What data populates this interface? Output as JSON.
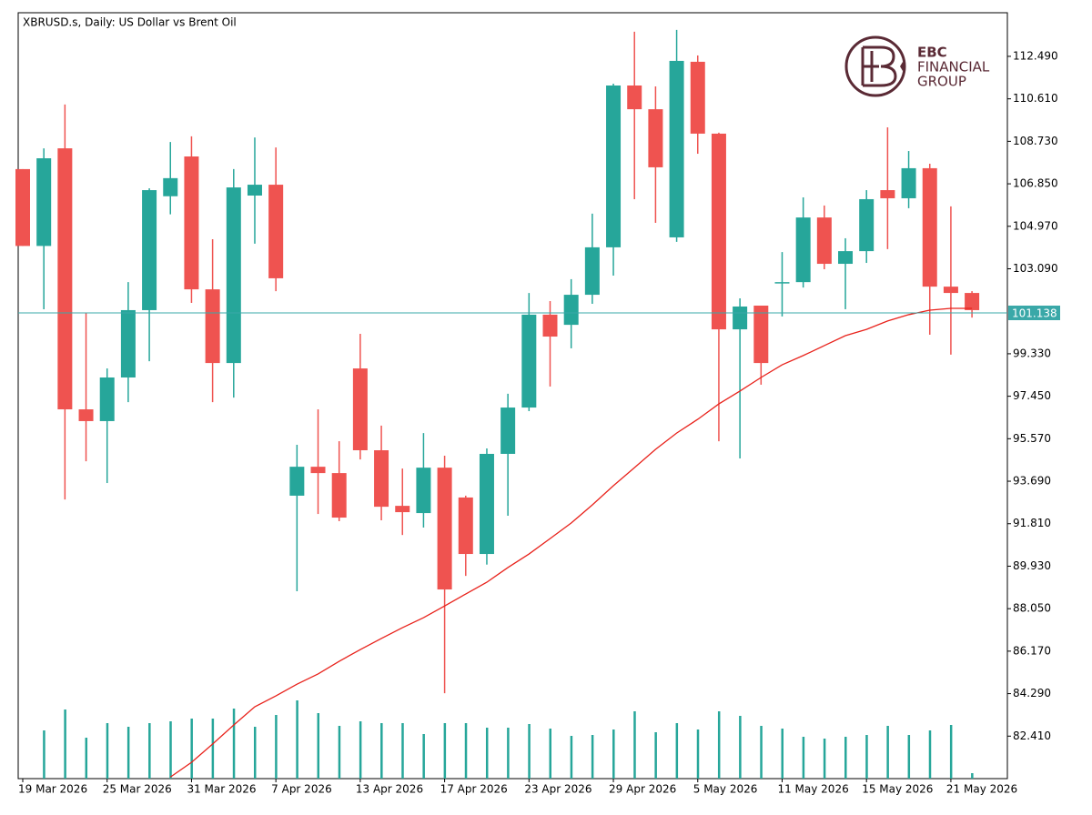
{
  "chart_data": {
    "type": "candlestick",
    "title": "XBRUSD.s, Daily:  US Dollar vs Brent Oil",
    "categories": [
      "19 Mar 2026",
      null,
      null,
      null,
      "25 Mar 2026",
      null,
      null,
      null,
      "31 Mar 2026",
      null,
      null,
      null,
      "7 Apr 2026",
      null,
      null,
      null,
      "13 Apr 2026",
      null,
      null,
      null,
      "17 Apr 2026",
      null,
      null,
      null,
      "23 Apr 2026",
      null,
      null,
      null,
      "29 Apr 2026",
      null,
      null,
      null,
      "5 May 2026",
      null,
      null,
      null,
      "11 May 2026",
      null,
      null,
      null,
      "15 May 2026",
      null,
      null,
      null,
      "21 May 2026",
      null
    ],
    "open": [
      107.5,
      104.1,
      108.42,
      96.87,
      96.35,
      98.28,
      101.26,
      106.3,
      108.06,
      102.18,
      98.92,
      106.33,
      106.81,
      93.05,
      94.33,
      94.05,
      98.68,
      95.06,
      92.6,
      92.28,
      94.29,
      92.97,
      90.47,
      94.9,
      96.95,
      101.06,
      100.61,
      101.94,
      104.04,
      111.2,
      110.15,
      104.48,
      112.25,
      109.07,
      100.41,
      101.46,
      102.46,
      102.5,
      105.36,
      103.31,
      103.87,
      106.57,
      106.21,
      107.54,
      102.3,
      102.02
    ],
    "high": [
      107.5,
      108.42,
      110.36,
      101.14,
      98.68,
      102.5,
      106.65,
      108.7,
      108.95,
      104.4,
      107.5,
      108.9,
      108.46,
      95.3,
      96.87,
      95.46,
      100.21,
      96.15,
      94.25,
      95.82,
      94.82,
      93.05,
      95.14,
      97.56,
      102.02,
      101.66,
      102.63,
      105.53,
      111.28,
      113.58,
      111.16,
      113.66,
      112.53,
      109.11,
      101.78,
      101.46,
      103.83,
      106.25,
      105.89,
      104.44,
      106.57,
      109.35,
      108.3,
      107.74,
      105.85,
      102.1
    ],
    "low": [
      104.1,
      101.3,
      92.88,
      94.57,
      93.61,
      97.19,
      99.0,
      105.5,
      101.58,
      97.19,
      97.39,
      104.2,
      102.1,
      88.82,
      92.24,
      91.92,
      94.65,
      91.96,
      91.31,
      91.64,
      84.31,
      89.5,
      90.0,
      92.16,
      96.79,
      97.88,
      99.57,
      101.54,
      102.79,
      106.17,
      105.12,
      104.28,
      108.18,
      95.46,
      94.7,
      97.96,
      100.98,
      102.26,
      103.07,
      101.3,
      103.35,
      103.96,
      105.77,
      100.17,
      99.29,
      100.93
    ],
    "close": [
      104.1,
      107.98,
      96.87,
      96.35,
      98.28,
      101.26,
      106.57,
      107.1,
      102.18,
      98.92,
      106.69,
      106.81,
      102.67,
      94.33,
      94.05,
      92.08,
      95.06,
      92.56,
      92.32,
      94.29,
      88.9,
      90.47,
      94.9,
      96.95,
      101.06,
      100.09,
      101.94,
      104.04,
      111.2,
      110.15,
      107.58,
      112.29,
      109.07,
      100.41,
      101.42,
      98.92,
      102.5,
      105.36,
      103.31,
      103.87,
      106.17,
      106.21,
      107.54,
      102.3,
      102.02,
      101.26
    ],
    "up_color": "#26a69a",
    "down_color": "#ef5350",
    "volume": [
      null,
      53,
      76,
      45,
      61,
      57,
      61,
      63,
      66,
      66,
      77,
      57,
      70,
      86,
      72,
      58,
      63,
      61,
      61,
      49,
      61,
      61,
      56,
      56,
      60,
      55,
      47,
      48,
      54,
      74,
      51,
      61,
      54,
      74,
      69,
      58,
      55,
      46,
      44,
      46,
      48,
      58,
      48,
      53,
      59,
      6
    ],
    "volume_color": "#26a69a",
    "ma": [
      null,
      null,
      null,
      null,
      null,
      null,
      null,
      80.6,
      81.25,
      82.06,
      82.9,
      83.71,
      84.19,
      84.71,
      85.16,
      85.72,
      86.24,
      86.73,
      87.21,
      87.65,
      88.17,
      88.7,
      89.22,
      89.87,
      90.47,
      91.15,
      91.84,
      92.64,
      93.49,
      94.29,
      95.1,
      95.82,
      96.43,
      97.11,
      97.68,
      98.28,
      98.84,
      99.25,
      99.69,
      100.13,
      100.41,
      100.78,
      101.06,
      101.26,
      101.34,
      101.34
    ],
    "ma_color": "#e8221b",
    "current_price": 101.138,
    "current_price_color": "#3aa8a8",
    "ylim": [
      80.53,
      114.42
    ],
    "yticks": [
      {
        "value": 82.41,
        "label": "82.410"
      },
      {
        "value": 84.29,
        "label": "84.290"
      },
      {
        "value": 86.17,
        "label": "86.170"
      },
      {
        "value": 88.05,
        "label": "88.050"
      },
      {
        "value": 89.93,
        "label": "89.930"
      },
      {
        "value": 91.81,
        "label": "91.810"
      },
      {
        "value": 93.69,
        "label": "93.690"
      },
      {
        "value": 95.57,
        "label": "95.570"
      },
      {
        "value": 97.45,
        "label": "97.450"
      },
      {
        "value": 99.33,
        "label": "99.330"
      },
      {
        "value": 103.09,
        "label": "103.090"
      },
      {
        "value": 104.97,
        "label": "104.970"
      },
      {
        "value": 106.85,
        "label": "106.850"
      },
      {
        "value": 108.73,
        "label": "108.730"
      },
      {
        "value": 110.61,
        "label": "110.610"
      },
      {
        "value": 112.49,
        "label": "112.490"
      }
    ],
    "grid": false
  },
  "logo": {
    "lines": [
      "EBC",
      "FINANCIAL",
      "GROUP"
    ]
  }
}
